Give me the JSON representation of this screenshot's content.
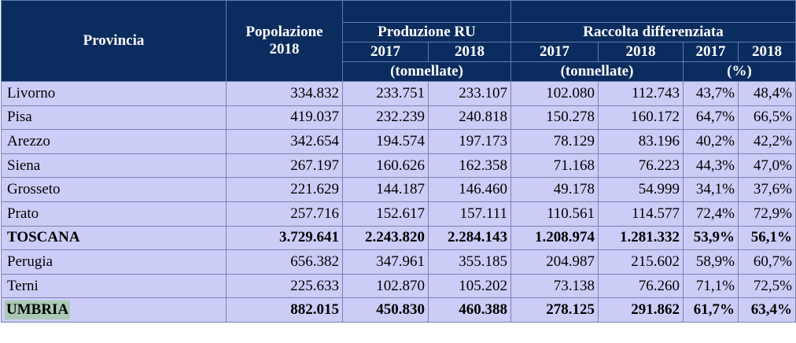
{
  "header": {
    "provincia": "Provincia",
    "popolazione": "Popolazione 2018",
    "produzione": "Produzione RU",
    "raccolta": "Raccolta differenziata",
    "years": [
      "2017",
      "2018",
      "2017",
      "2018",
      "2017",
      "2018"
    ],
    "unit_tonnellate_1": "(tonnellate)",
    "unit_tonnellate_2": "(tonnellate)",
    "unit_percent": "(%)"
  },
  "rows": [
    {
      "name": "Livorno",
      "pop": "334.832",
      "ru2017": "233.751",
      "ru2018": "233.107",
      "rd2017": "102.080",
      "rd2018": "112.743",
      "pct2017": "43,7%",
      "pct2018": "48,4%",
      "total": false
    },
    {
      "name": "Pisa",
      "pop": "419.037",
      "ru2017": "232.239",
      "ru2018": "240.818",
      "rd2017": "150.278",
      "rd2018": "160.172",
      "pct2017": "64,7%",
      "pct2018": "66,5%",
      "total": false
    },
    {
      "name": "Arezzo",
      "pop": "342.654",
      "ru2017": "194.574",
      "ru2018": "197.173",
      "rd2017": "78.129",
      "rd2018": "83.196",
      "pct2017": "40,2%",
      "pct2018": "42,2%",
      "total": false
    },
    {
      "name": "Siena",
      "pop": "267.197",
      "ru2017": "160.626",
      "ru2018": "162.358",
      "rd2017": "71.168",
      "rd2018": "76.223",
      "pct2017": "44,3%",
      "pct2018": "47,0%",
      "total": false
    },
    {
      "name": "Grosseto",
      "pop": "221.629",
      "ru2017": "144.187",
      "ru2018": "146.460",
      "rd2017": "49.178",
      "rd2018": "54.999",
      "pct2017": "34,1%",
      "pct2018": "37,6%",
      "total": false
    },
    {
      "name": "Prato",
      "pop": "257.716",
      "ru2017": "152.617",
      "ru2018": "157.111",
      "rd2017": "110.561",
      "rd2018": "114.577",
      "pct2017": "72,4%",
      "pct2018": "72,9%",
      "total": false
    },
    {
      "name": "TOSCANA",
      "pop": "3.729.641",
      "ru2017": "2.243.820",
      "ru2018": "2.284.143",
      "rd2017": "1.208.974",
      "rd2018": "1.281.332",
      "pct2017": "53,9%",
      "pct2018": "56,1%",
      "total": true
    },
    {
      "name": "Perugia",
      "pop": "656.382",
      "ru2017": "347.961",
      "ru2018": "355.185",
      "rd2017": "204.987",
      "rd2018": "215.602",
      "pct2017": "58,9%",
      "pct2018": "60,7%",
      "total": false
    },
    {
      "name": "Terni",
      "pop": "225.633",
      "ru2017": "102.870",
      "ru2018": "105.202",
      "rd2017": "73.138",
      "rd2018": "76.260",
      "pct2017": "71,1%",
      "pct2018": "72,5%",
      "total": false
    },
    {
      "name": "UMBRIA",
      "pop": "882.015",
      "ru2017": "450.830",
      "ru2018": "460.388",
      "rd2017": "278.125",
      "rd2018": "291.862",
      "pct2017": "61,7%",
      "pct2018": "63,4%",
      "total": true,
      "highlight": true
    }
  ]
}
